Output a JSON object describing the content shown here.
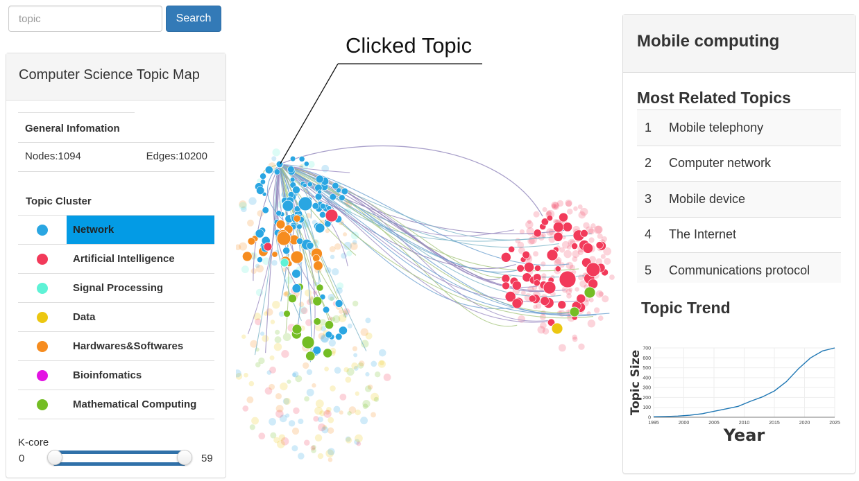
{
  "search": {
    "placeholder": "topic",
    "button_label": "Search"
  },
  "left_panel": {
    "title": "Computer Science Topic Map",
    "general_info_title": "General Infomation",
    "nodes_label": "Nodes:1094",
    "edges_label": "Edges:10200",
    "cluster_title": "Topic Cluster",
    "clusters": [
      {
        "label": "Network",
        "color": "#2aa6e2",
        "active": true
      },
      {
        "label": "Artificial Intelligence",
        "color": "#f23a5a",
        "active": false
      },
      {
        "label": "Signal Processing",
        "color": "#5ef2d6",
        "active": false
      },
      {
        "label": "Data",
        "color": "#ecc711",
        "active": false
      },
      {
        "label": "Hardwares&Softwares",
        "color": "#f68c1f",
        "active": false
      },
      {
        "label": "Bioinfomatics",
        "color": "#e314e3",
        "active": false
      },
      {
        "label": "Mathematical Computing",
        "color": "#74bd24",
        "active": false
      }
    ],
    "kcore": {
      "label": "K-core",
      "min": "0",
      "max": "59",
      "range": [
        0,
        59
      ]
    }
  },
  "graph": {
    "annotation": "Clicked Topic"
  },
  "right_panel": {
    "title": "Mobile computing",
    "related_title": "Most Related Topics",
    "related": [
      {
        "rank": "1",
        "label": "Mobile telephony"
      },
      {
        "rank": "2",
        "label": "Computer network"
      },
      {
        "rank": "3",
        "label": "Mobile device"
      },
      {
        "rank": "4",
        "label": "The Internet"
      },
      {
        "rank": "5",
        "label": "Communications protocol"
      }
    ],
    "trend_title": "Topic Trend"
  },
  "chart_data": {
    "type": "line",
    "xlabel": "Year",
    "ylabel": "Topic Size",
    "xlim": [
      1995,
      2025
    ],
    "ylim": [
      0,
      700
    ],
    "xticks": [
      "1995",
      "2000",
      "2005",
      "2010",
      "2015",
      "2020",
      "2025"
    ],
    "yticks": [
      "0",
      "100",
      "200",
      "300",
      "400",
      "500",
      "600",
      "700"
    ],
    "grid": true,
    "series": [
      {
        "color": "#1f77b4",
        "x": [
          1995,
          1997,
          1999,
          2001,
          2003,
          2005,
          2007,
          2009,
          2011,
          2013,
          2015,
          2017,
          2019,
          2021,
          2023,
          2025
        ],
        "y": [
          5,
          8,
          12,
          20,
          35,
          60,
          85,
          110,
          160,
          205,
          265,
          360,
          490,
          600,
          670,
          700
        ]
      }
    ]
  }
}
